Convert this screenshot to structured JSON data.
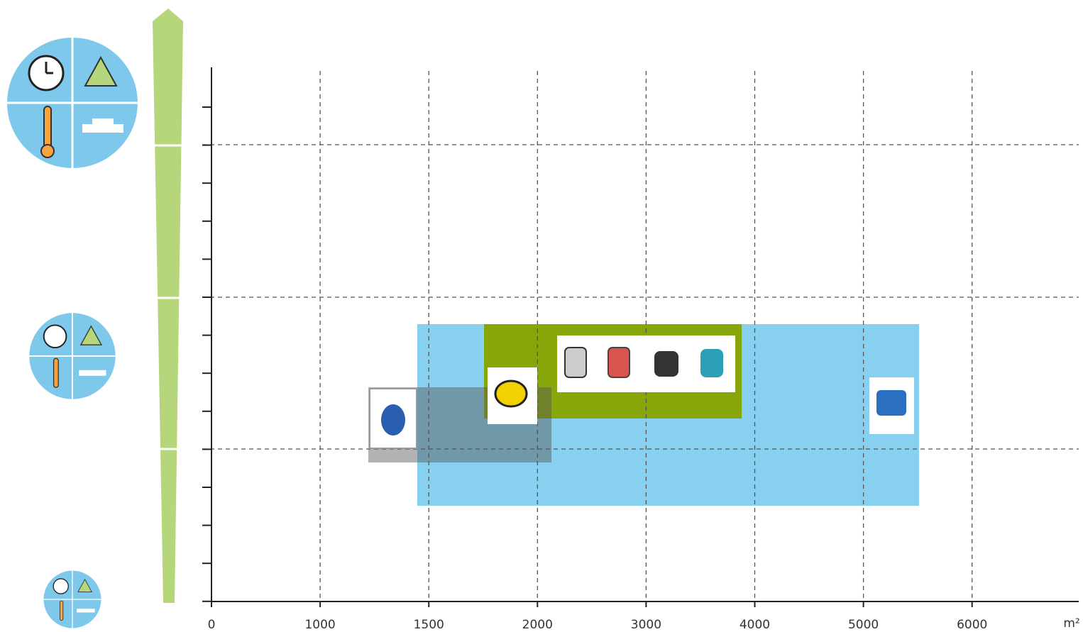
{
  "x_axis": {
    "labels": [
      "0",
      "1000",
      "1500",
      "2000",
      "3000",
      "4000",
      "5000",
      "6000"
    ],
    "unit": "m²"
  }
}
